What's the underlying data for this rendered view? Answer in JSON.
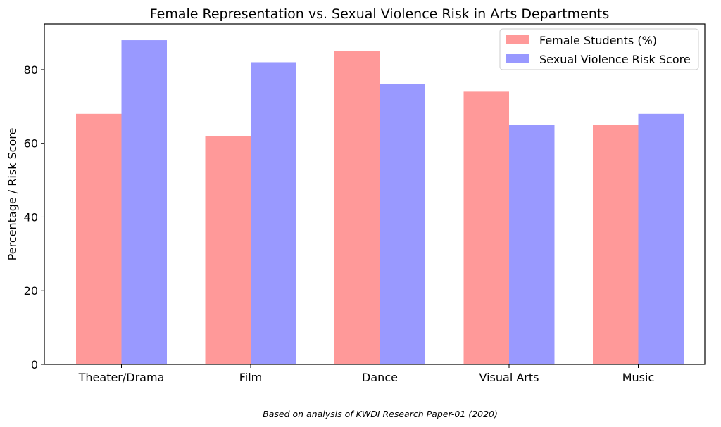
{
  "chart_data": {
    "type": "bar",
    "title": "Female Representation vs. Sexual Violence Risk in Arts Departments",
    "xlabel": "",
    "ylabel": "Percentage / Risk Score",
    "categories": [
      "Theater/Drama",
      "Film",
      "Dance",
      "Visual Arts",
      "Music"
    ],
    "series": [
      {
        "name": "Female Students (%)",
        "values": [
          68,
          62,
          85,
          74,
          65
        ],
        "color": "#ff9999"
      },
      {
        "name": "Sexual Violence Risk Score",
        "values": [
          88,
          82,
          76,
          65,
          68
        ],
        "color": "#9999ff"
      }
    ],
    "ylim": [
      0,
      92.4
    ],
    "yticks": [
      0,
      20,
      40,
      60,
      80
    ],
    "grid": false,
    "legend_position": "top-right"
  },
  "caption": "Based on analysis of KWDI Research Paper-01 (2020)"
}
